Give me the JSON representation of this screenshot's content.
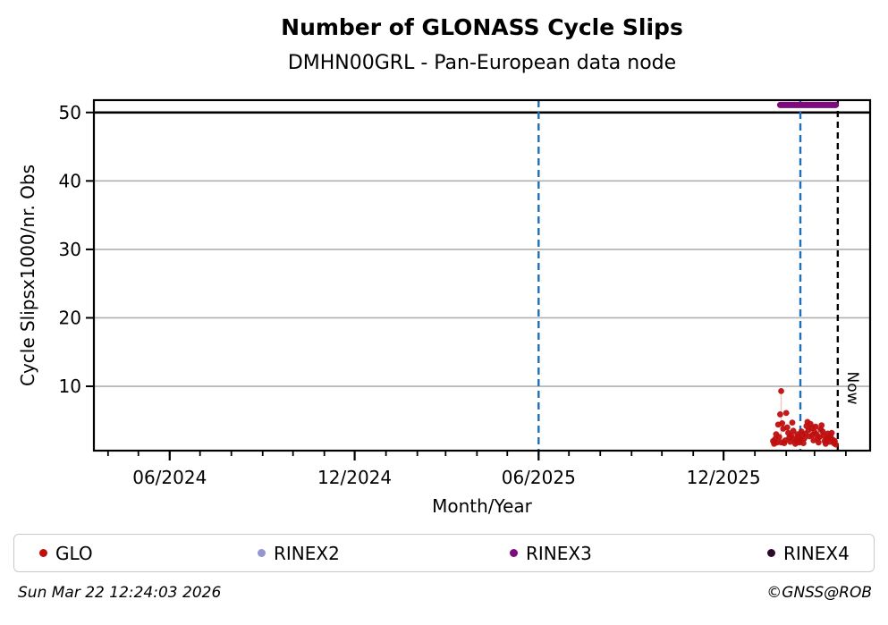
{
  "header": {
    "title": "Number of GLONASS Cycle Slips",
    "subtitle": "DMHN00GRL - Pan-European data node"
  },
  "footer": {
    "timestamp": "Sun Mar 22 12:24:03 2026",
    "copyright": "©GNSS@ROB"
  },
  "legend": {
    "items": [
      {
        "label": "GLO",
        "color": "#bf0f0f"
      },
      {
        "label": "RINEX2",
        "color": "#9595d2"
      },
      {
        "label": "RINEX3",
        "color": "#7d0b7d"
      },
      {
        "label": "RINEX4",
        "color": "#2b0a2b"
      }
    ]
  },
  "chart_data": {
    "type": "scatter",
    "title": "Number of GLONASS Cycle Slips",
    "subtitle": "DMHN00GRL - Pan-European data node",
    "xlabel": "Month/Year",
    "ylabel": "Cycle Slipsx1000/nr. Obs",
    "xlim": [
      "2024-03-18",
      "2026-04-25"
    ],
    "ylim": [
      0.6,
      51.8
    ],
    "yticks": [
      10,
      20,
      30,
      40,
      50
    ],
    "xticks_major": [
      {
        "date": "2024-06-01",
        "label": "06/2024"
      },
      {
        "date": "2024-12-01",
        "label": "12/2024"
      },
      {
        "date": "2025-06-01",
        "label": "06/2025"
      },
      {
        "date": "2025-12-01",
        "label": "12/2025"
      }
    ],
    "xticks_minor_monthly": {
      "start": "2024-04-01",
      "end": "2026-04-01"
    },
    "grid": {
      "color": "#b0b0b0",
      "ticks": [
        10,
        20,
        30,
        40
      ]
    },
    "hline": {
      "y": 50,
      "color": "#000000"
    },
    "vlines": [
      {
        "date": "2025-06-01",
        "color": "#1c6fba",
        "dash": "8 5",
        "label": ""
      },
      {
        "date": "2026-02-15",
        "color": "#1c6fba",
        "dash": "8 5",
        "label": ""
      },
      {
        "date": "2026-03-24",
        "color": "#000000",
        "dash": "7 5",
        "label": "Now"
      }
    ],
    "availability_band": {
      "name": "RINEX3",
      "color": "#7d0b7d",
      "value": 51.1,
      "start": "2026-01-26",
      "end": "2026-03-22"
    },
    "error_stems": [
      {
        "date": "2026-01-27",
        "from": 9.3,
        "to": 1.8,
        "color": "#f2c4c4"
      }
    ],
    "series": [
      {
        "name": "GLO",
        "color": "#bf0f0f",
        "points": [
          [
            "2026-01-19",
            2.0
          ],
          [
            "2026-01-20",
            1.6
          ],
          [
            "2026-01-21",
            2.3
          ],
          [
            "2026-01-22",
            3.0
          ],
          [
            "2026-01-23",
            1.8
          ],
          [
            "2026-01-24",
            4.4
          ],
          [
            "2026-01-25",
            2.6
          ],
          [
            "2026-01-26",
            5.9
          ],
          [
            "2026-01-27",
            9.3
          ],
          [
            "2026-01-27",
            1.8
          ],
          [
            "2026-01-28",
            4.6
          ],
          [
            "2026-01-29",
            3.8
          ],
          [
            "2026-01-30",
            1.7
          ],
          [
            "2026-01-31",
            2.1
          ],
          [
            "2026-02-01",
            6.1
          ],
          [
            "2026-02-02",
            4.0
          ],
          [
            "2026-02-03",
            3.2
          ],
          [
            "2026-02-04",
            2.5
          ],
          [
            "2026-02-05",
            1.9
          ],
          [
            "2026-02-06",
            2.8
          ],
          [
            "2026-02-07",
            4.7
          ],
          [
            "2026-02-08",
            3.5
          ],
          [
            "2026-02-09",
            2.3
          ],
          [
            "2026-02-10",
            1.6
          ],
          [
            "2026-02-11",
            2.0
          ],
          [
            "2026-02-12",
            3.0
          ],
          [
            "2026-02-13",
            2.6
          ],
          [
            "2026-02-14",
            1.8
          ],
          [
            "2026-02-15",
            2.2
          ],
          [
            "2026-02-16",
            3.4
          ],
          [
            "2026-02-17",
            2.9
          ],
          [
            "2026-02-18",
            1.7
          ],
          [
            "2026-02-19",
            2.4
          ],
          [
            "2026-02-20",
            3.1
          ],
          [
            "2026-02-21",
            4.2
          ],
          [
            "2026-02-22",
            4.8
          ],
          [
            "2026-02-23",
            3.6
          ],
          [
            "2026-02-24",
            2.7
          ],
          [
            "2026-02-25",
            4.5
          ],
          [
            "2026-02-26",
            3.9
          ],
          [
            "2026-02-27",
            2.9
          ],
          [
            "2026-02-28",
            2.1
          ],
          [
            "2026-03-01",
            3.3
          ],
          [
            "2026-03-02",
            4.1
          ],
          [
            "2026-03-03",
            3.0
          ],
          [
            "2026-03-04",
            2.4
          ],
          [
            "2026-03-05",
            1.8
          ],
          [
            "2026-03-06",
            2.6
          ],
          [
            "2026-03-07",
            3.7
          ],
          [
            "2026-03-08",
            4.3
          ],
          [
            "2026-03-09",
            3.4
          ],
          [
            "2026-03-10",
            2.8
          ],
          [
            "2026-03-11",
            2.0
          ],
          [
            "2026-03-12",
            1.6
          ],
          [
            "2026-03-13",
            2.3
          ],
          [
            "2026-03-14",
            3.1
          ],
          [
            "2026-03-15",
            2.5
          ],
          [
            "2026-03-16",
            1.9
          ],
          [
            "2026-03-17",
            2.7
          ],
          [
            "2026-03-18",
            3.2
          ],
          [
            "2026-03-19",
            2.2
          ],
          [
            "2026-03-20",
            1.7
          ],
          [
            "2026-03-21",
            2.0
          ],
          [
            "2026-03-22",
            1.5
          ]
        ]
      },
      {
        "name": "RINEX2",
        "color": "#9595d2",
        "points": []
      },
      {
        "name": "RINEX4",
        "color": "#2b0a2b",
        "points": []
      }
    ]
  }
}
